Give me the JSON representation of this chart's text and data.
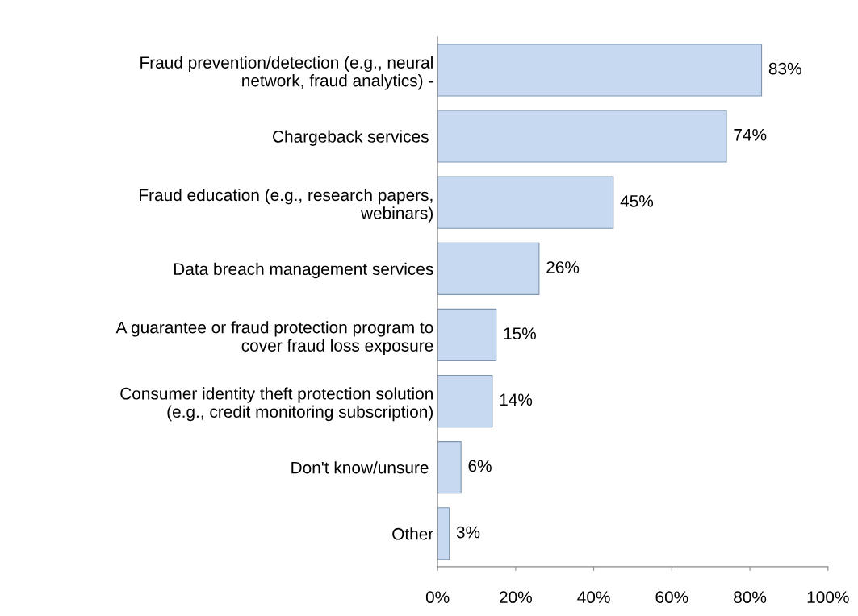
{
  "chart_data": {
    "type": "bar",
    "orientation": "horizontal",
    "categories": [
      "Fraud prevention/detection (e.g., neural\nnetwork, fraud analytics) -",
      "Chargeback services ",
      "Fraud education (e.g., research papers,\nwebinars)",
      "Data breach management services",
      "A guarantee or fraud protection program to\ncover fraud loss exposure",
      "Consumer identity theft protection solution\n(e.g., credit monitoring subscription)",
      "Don't know/unsure ",
      "Other"
    ],
    "values": [
      83,
      74,
      45,
      26,
      15,
      14,
      6,
      3
    ],
    "value_labels": [
      "83%",
      "74%",
      "45%",
      "26%",
      "15%",
      "14%",
      "6%",
      "3%"
    ],
    "color": "#c6d9f1",
    "xlim": [
      0,
      100
    ],
    "xticks": [
      {
        "value": 0,
        "label": "0%"
      },
      {
        "value": 20,
        "label": "20%"
      },
      {
        "value": 40,
        "label": "40%"
      },
      {
        "value": 60,
        "label": "60%"
      },
      {
        "value": 80,
        "label": "80%"
      },
      {
        "value": 100,
        "label": "100%"
      }
    ],
    "grid": false,
    "legend": false
  }
}
